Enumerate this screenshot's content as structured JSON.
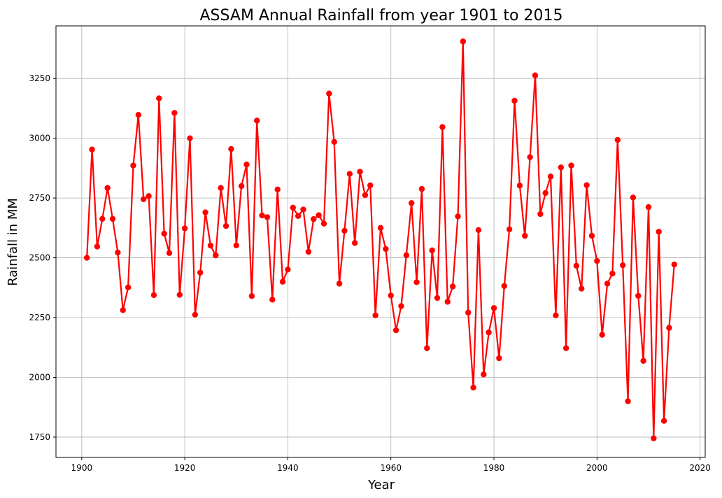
{
  "chart_data": {
    "type": "line",
    "title": "ASSAM Annual Rainfall from year 1901 to 2015",
    "xlabel": "Year",
    "ylabel": "Rainfall in MM",
    "xlim": [
      1895,
      2021
    ],
    "ylim": [
      1665,
      3470
    ],
    "x_ticks": [
      1900,
      1920,
      1940,
      1960,
      1980,
      2000,
      2020
    ],
    "y_ticks": [
      1750,
      2000,
      2250,
      2500,
      2750,
      3000,
      3250
    ],
    "grid": true,
    "series_color": "#ff0000",
    "series": [
      {
        "x": [
          1901,
          1902,
          1903,
          1904,
          1905,
          1906,
          1907,
          1908,
          1909,
          1910,
          1911,
          1912,
          1913,
          1914,
          1915,
          1916,
          1917,
          1918,
          1919,
          1920,
          1921,
          1922,
          1923,
          1924,
          1925,
          1926,
          1927,
          1928,
          1929,
          1930,
          1931,
          1932,
          1933,
          1934,
          1935,
          1936,
          1937,
          1938,
          1939,
          1940,
          1941,
          1942,
          1943,
          1944,
          1945,
          1946,
          1947,
          1948,
          1949,
          1950,
          1951,
          1952,
          1953,
          1954,
          1955,
          1956,
          1957,
          1958,
          1959,
          1960,
          1961,
          1962,
          1963,
          1964,
          1965,
          1966,
          1967,
          1968,
          1969,
          1970,
          1971,
          1972,
          1973,
          1974,
          1975,
          1976,
          1977,
          1978,
          1979,
          1980,
          1981,
          1982,
          1983,
          1984,
          1985,
          1986,
          1987,
          1988,
          1989,
          1990,
          1991,
          1992,
          1993,
          1994,
          1995,
          1996,
          1997,
          1998,
          1999,
          2000,
          2001,
          2002,
          2003,
          2004,
          2005,
          2006,
          2007,
          2008,
          2009,
          2010,
          2011,
          2012,
          2013,
          2014,
          2015
        ],
        "values": [
          2500,
          2953,
          2547,
          2663,
          2792,
          2663,
          2522,
          2281,
          2376,
          2886,
          3098,
          2745,
          2758,
          2344,
          3167,
          2601,
          2520,
          3106,
          2345,
          2623,
          3000,
          2262,
          2438,
          2690,
          2551,
          2510,
          2792,
          2633,
          2955,
          2552,
          2800,
          2890,
          2340,
          3074,
          2677,
          2670,
          2325,
          2786,
          2400,
          2451,
          2710,
          2675,
          2702,
          2525,
          2662,
          2678,
          2643,
          3187,
          2985,
          2392,
          2613,
          2851,
          2562,
          2860,
          2762,
          2803,
          2259,
          2625,
          2537,
          2342,
          2197,
          2298,
          2511,
          2729,
          2398,
          2788,
          2122,
          2531,
          2332,
          3047,
          2316,
          2380,
          2673,
          3405,
          2271,
          1957,
          2616,
          2012,
          2188,
          2290,
          2080,
          2382,
          2619,
          3157,
          2802,
          2592,
          2921,
          3263,
          2683,
          2771,
          2840,
          2259,
          2878,
          2122,
          2886,
          2467,
          2371,
          2804,
          2592,
          2487,
          2178,
          2392,
          2434,
          2993,
          2469,
          1900,
          2752,
          2341,
          2069,
          2712,
          1745,
          2609,
          1818,
          2207,
          2472
        ]
      }
    ]
  }
}
